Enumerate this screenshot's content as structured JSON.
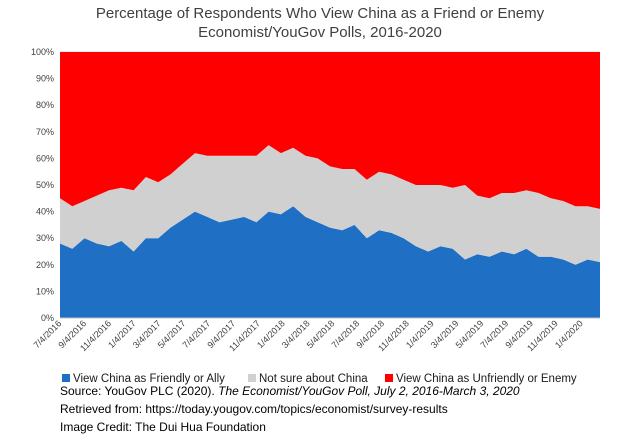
{
  "chart_data": {
    "type": "area",
    "stacking": "percent",
    "title": [
      "Percentage of Respondents Who View China as a Friend or Enemy",
      "Economist/YouGov Polls, 2016-2020"
    ],
    "xlabel": "",
    "ylabel": "",
    "ylim": [
      0,
      100
    ],
    "yticks": [
      "0%",
      "10%",
      "20%",
      "30%",
      "40%",
      "50%",
      "60%",
      "70%",
      "80%",
      "90%",
      "100%"
    ],
    "xticks": [
      "7/4/2016",
      "9/4/2016",
      "11/4/2016",
      "1/4/2017",
      "3/4/2017",
      "5/4/2017",
      "7/4/2017",
      "9/4/2017",
      "11/4/2017",
      "1/4/2018",
      "3/4/2018",
      "5/4/2018",
      "7/4/2018",
      "9/4/2018",
      "11/4/2018",
      "1/4/2019",
      "3/4/2019",
      "5/4/2019",
      "7/4/2019",
      "9/4/2019",
      "11/4/2019",
      "1/4/2020"
    ],
    "legend_position": "bottom",
    "x": [
      0,
      1,
      2,
      3,
      4,
      5,
      6,
      7,
      8,
      9,
      10,
      11,
      12,
      13,
      14,
      15,
      16,
      17,
      18,
      19,
      20,
      21,
      22,
      23,
      24,
      25,
      26,
      27,
      28,
      29,
      30,
      31,
      32,
      33,
      34,
      35,
      36,
      37,
      38,
      39,
      40,
      41,
      42,
      43,
      44
    ],
    "series": [
      {
        "name": "View China as Friendly or Ally",
        "color": "#1f6fc5",
        "values": [
          28,
          26,
          30,
          28,
          27,
          29,
          25,
          30,
          30,
          34,
          37,
          40,
          38,
          36,
          37,
          38,
          36,
          40,
          39,
          42,
          38,
          36,
          34,
          33,
          35,
          30,
          33,
          32,
          30,
          27,
          25,
          27,
          26,
          22,
          24,
          23,
          25,
          24,
          26,
          23,
          23,
          22,
          20,
          22,
          21
        ]
      },
      {
        "name": "Not sure about China",
        "color": "#d0d0d0",
        "values": [
          17,
          16,
          14,
          18,
          21,
          20,
          23,
          23,
          21,
          20,
          21,
          22,
          23,
          25,
          24,
          23,
          25,
          25,
          23,
          22,
          23,
          24,
          23,
          23,
          21,
          22,
          22,
          22,
          22,
          23,
          25,
          23,
          23,
          28,
          22,
          22,
          22,
          23,
          22,
          24,
          22,
          22,
          22,
          20,
          20
        ]
      },
      {
        "name": "View China as Unfriendly or Enemy",
        "color": "#ff0000",
        "values": [
          55,
          58,
          56,
          54,
          52,
          51,
          52,
          47,
          49,
          46,
          42,
          38,
          39,
          39,
          39,
          39,
          39,
          35,
          38,
          36,
          39,
          40,
          43,
          44,
          44,
          48,
          45,
          46,
          48,
          50,
          50,
          50,
          51,
          50,
          54,
          55,
          53,
          53,
          52,
          53,
          55,
          56,
          58,
          58,
          59
        ]
      }
    ]
  },
  "source": {
    "line1_prefix": "Source: YouGov PLC (2020). ",
    "line1_italic": "The Economist/YouGov Poll, July 2, 2016-March 3, 2020",
    "line2": "Retrieved from: https://today.yougov.com/topics/economist/survey-results",
    "line3": "Image Credit: The Dui Hua Foundation"
  }
}
